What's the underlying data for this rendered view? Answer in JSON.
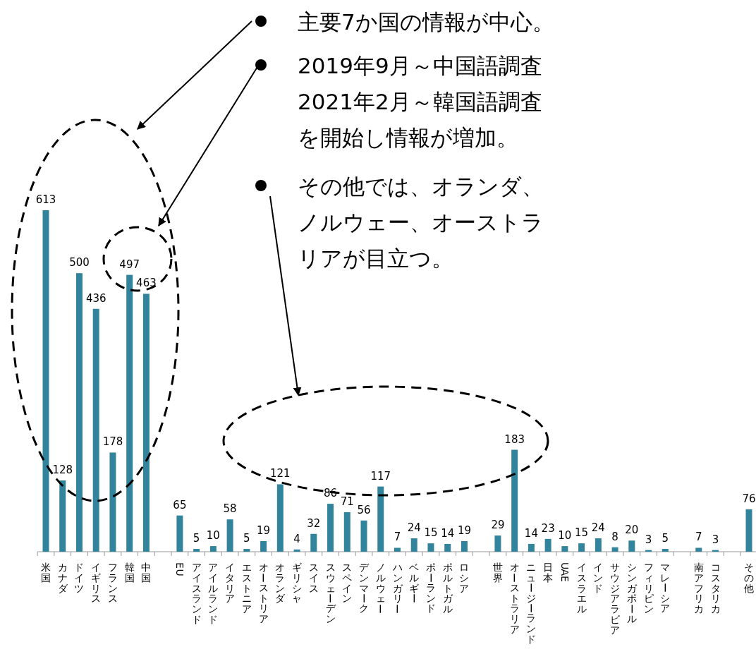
{
  "chart_data": {
    "type": "bar",
    "color": "#31849b",
    "data_labels": true,
    "categories": [
      "米国",
      "カナダ",
      "ドイツ",
      "イギリス",
      "フランス",
      "韓国",
      "中国",
      null,
      "EU",
      "アイスランド",
      "アイルランド",
      "イタリア",
      "エストニア",
      "オーストリア",
      "オランダ",
      "ギリシャ",
      "スイス",
      "スウェーデン",
      "スペイン",
      "デンマーク",
      "ノルウェー",
      "ハンガリー",
      "ベルギー",
      "ポーランド",
      "ポルトガル",
      "ロシア",
      null,
      "世界",
      "オーストラリア",
      "ニュージーランド",
      "日本",
      "UAE",
      "イスラエル",
      "インド",
      "サウジアラビア",
      "シンガポール",
      "フィリピン",
      "マレーシア",
      null,
      "南アフリカ",
      "コスタリカ",
      null,
      "その他"
    ],
    "values": [
      613,
      128,
      500,
      436,
      178,
      497,
      463,
      null,
      65,
      5,
      10,
      58,
      5,
      19,
      121,
      4,
      32,
      86,
      71,
      56,
      117,
      7,
      24,
      15,
      14,
      19,
      null,
      29,
      183,
      14,
      23,
      10,
      15,
      24,
      8,
      20,
      3,
      5,
      null,
      7,
      3,
      null,
      76
    ],
    "annotations": [
      "主要7か国の情報が中心。",
      "2019年9月～中国語調査2021年2月～韓国語調査を開始し情報が増加。",
      "その他では、オランダ、ノルウェー、オーストラリアが目立つ。"
    ]
  }
}
